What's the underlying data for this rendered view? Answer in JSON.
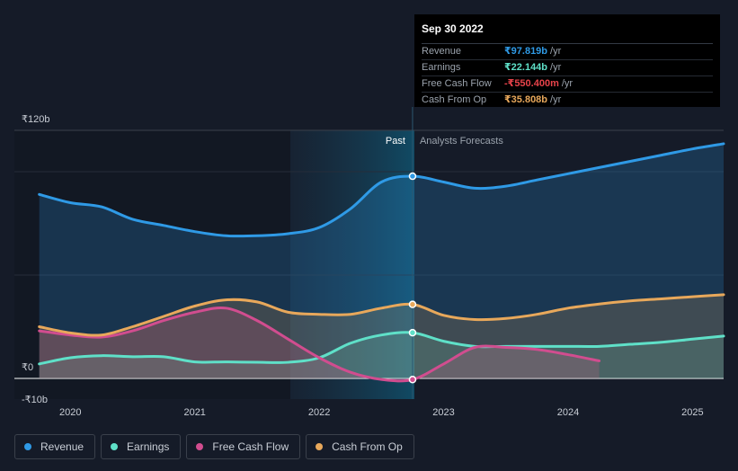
{
  "chart_data": {
    "type": "line",
    "y_tick_labels": [
      "₹120b",
      "₹0",
      "-₹10b"
    ],
    "x_tick_labels": [
      "2020",
      "2021",
      "2022",
      "2023",
      "2024",
      "2025"
    ],
    "ylim": [
      -10,
      120
    ],
    "xlim": [
      2019.55,
      2025.25
    ],
    "past_label": "Past",
    "forecast_label": "Analysts Forecasts",
    "forecast_start": 2022.75,
    "series": [
      {
        "name": "Revenue",
        "key": "revenue",
        "color": "#2f9ae6",
        "x": [
          2019.75,
          2020.0,
          2020.25,
          2020.5,
          2020.75,
          2021.0,
          2021.25,
          2021.5,
          2021.75,
          2022.0,
          2022.25,
          2022.5,
          2022.75,
          2023.0,
          2023.25,
          2023.5,
          2023.75,
          2024.0,
          2024.25,
          2024.5,
          2024.75,
          2025.0,
          2025.25
        ],
        "y": [
          89,
          85,
          83,
          77,
          74,
          71,
          69,
          69,
          70,
          73,
          82,
          95,
          97.8,
          95,
          92,
          93,
          96,
          99,
          102,
          105,
          108,
          111,
          113.5
        ]
      },
      {
        "name": "Earnings",
        "key": "earnings",
        "color": "#5fe0c8",
        "x": [
          2019.75,
          2020.0,
          2020.25,
          2020.5,
          2020.75,
          2021.0,
          2021.25,
          2021.5,
          2021.75,
          2022.0,
          2022.25,
          2022.5,
          2022.75,
          2023.0,
          2023.25,
          2023.5,
          2023.75,
          2024.0,
          2024.25,
          2024.5,
          2024.75,
          2025.0,
          2025.25
        ],
        "y": [
          7,
          10,
          11,
          10.5,
          10.5,
          8,
          8,
          7.8,
          7.8,
          10,
          17,
          21,
          22.1,
          18,
          15.5,
          15.5,
          15.5,
          15.5,
          15.5,
          16.5,
          17.5,
          19,
          20.5
        ]
      },
      {
        "name": "Free Cash Flow",
        "key": "fcf",
        "color": "#d14d8f",
        "x": [
          2019.75,
          2020.0,
          2020.25,
          2020.5,
          2020.75,
          2021.0,
          2021.25,
          2021.5,
          2021.75,
          2022.0,
          2022.25,
          2022.5,
          2022.75,
          2023.0,
          2023.25,
          2023.5,
          2023.75,
          2024.0,
          2024.25
        ],
        "y": [
          23,
          21,
          20,
          23,
          28,
          32,
          34,
          28,
          19,
          10,
          3,
          -0.5,
          -0.55,
          7,
          15,
          15,
          14,
          11.5,
          8.5
        ]
      },
      {
        "name": "Cash From Op",
        "key": "cfo",
        "color": "#e8a85b",
        "x": [
          2019.75,
          2020.0,
          2020.25,
          2020.5,
          2020.75,
          2021.0,
          2021.25,
          2021.5,
          2021.75,
          2022.0,
          2022.25,
          2022.5,
          2022.75,
          2023.0,
          2023.25,
          2023.5,
          2023.75,
          2024.0,
          2024.25,
          2024.5,
          2024.75,
          2025.0,
          2025.25
        ],
        "y": [
          25,
          22,
          21,
          25,
          30,
          35,
          38,
          37,
          32,
          31,
          31,
          34,
          35.8,
          30.5,
          28.5,
          29,
          31,
          34,
          36,
          37.5,
          38.5,
          39.5,
          40.5
        ]
      }
    ],
    "highlight_x": 2022.75
  },
  "tooltip": {
    "date": "Sep 30 2022",
    "rows": [
      {
        "label": "Revenue",
        "value": "₹97.819b",
        "unit": "/yr",
        "color": "#2f9ae6"
      },
      {
        "label": "Earnings",
        "value": "₹22.144b",
        "unit": "/yr",
        "color": "#5fe0c8"
      },
      {
        "label": "Free Cash Flow",
        "value": "-₹550.400m",
        "unit": "/yr",
        "color": "#e8434a"
      },
      {
        "label": "Cash From Op",
        "value": "₹35.808b",
        "unit": "/yr",
        "color": "#e8a85b"
      }
    ]
  },
  "legend": [
    {
      "label": "Revenue",
      "color": "#2f9ae6"
    },
    {
      "label": "Earnings",
      "color": "#5fe0c8"
    },
    {
      "label": "Free Cash Flow",
      "color": "#d14d8f"
    },
    {
      "label": "Cash From Op",
      "color": "#e8a85b"
    }
  ]
}
